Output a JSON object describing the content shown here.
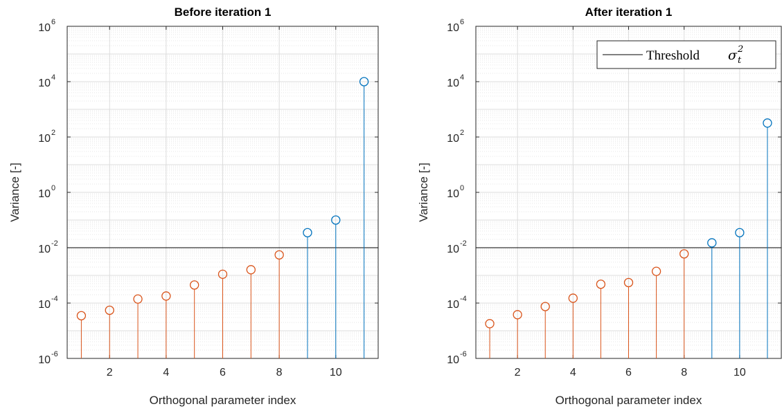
{
  "chart_data": [
    {
      "type": "stem",
      "title": "Before iteration 1",
      "xlabel": "Orthogonal parameter index",
      "ylabel": "Variance [-]",
      "yscale": "log",
      "xlim": [
        0.5,
        11.5
      ],
      "ylim": [
        1e-06,
        1000000.0
      ],
      "xticks": [
        2,
        4,
        6,
        8,
        10
      ],
      "yticks": [
        {
          "base": "10",
          "exp": "-6"
        },
        {
          "base": "10",
          "exp": "-4"
        },
        {
          "base": "10",
          "exp": "-2"
        },
        {
          "base": "10",
          "exp": "0"
        },
        {
          "base": "10",
          "exp": "2"
        },
        {
          "base": "10",
          "exp": "4"
        },
        {
          "base": "10",
          "exp": "6"
        }
      ],
      "grid": true,
      "threshold": 0.01,
      "x": [
        1,
        2,
        3,
        4,
        5,
        6,
        7,
        8,
        9,
        10,
        11
      ],
      "values": [
        3.5e-05,
        5.5e-05,
        0.00014,
        0.00018,
        0.00045,
        0.0011,
        0.0016,
        0.0055,
        0.035,
        0.1,
        10000.0
      ],
      "colors": {
        "below_threshold": "#D95319",
        "above_threshold": "#0072BD",
        "threshold": "#000000"
      }
    },
    {
      "type": "stem",
      "title": "After iteration 1",
      "xlabel": "Orthogonal parameter index",
      "ylabel": "Variance [-]",
      "yscale": "log",
      "xlim": [
        0.5,
        11.5
      ],
      "ylim": [
        1e-06,
        1000000.0
      ],
      "xticks": [
        2,
        4,
        6,
        8,
        10
      ],
      "yticks": [
        {
          "base": "10",
          "exp": "-6"
        },
        {
          "base": "10",
          "exp": "-4"
        },
        {
          "base": "10",
          "exp": "-2"
        },
        {
          "base": "10",
          "exp": "0"
        },
        {
          "base": "10",
          "exp": "2"
        },
        {
          "base": "10",
          "exp": "4"
        },
        {
          "base": "10",
          "exp": "6"
        }
      ],
      "grid": true,
      "threshold": 0.01,
      "x": [
        1,
        2,
        3,
        4,
        5,
        6,
        7,
        8,
        9,
        10,
        11
      ],
      "values": [
        1.8e-05,
        3.8e-05,
        7.5e-05,
        0.00015,
        0.00048,
        0.00055,
        0.0014,
        0.006,
        0.015,
        0.035,
        320
      ],
      "colors": {
        "below_threshold": "#D95319",
        "above_threshold": "#0072BD",
        "threshold": "#000000"
      },
      "legend": {
        "position": "top-right",
        "label": "Threshold",
        "symbol": "σ",
        "sup": "2",
        "sub": "t"
      }
    }
  ]
}
